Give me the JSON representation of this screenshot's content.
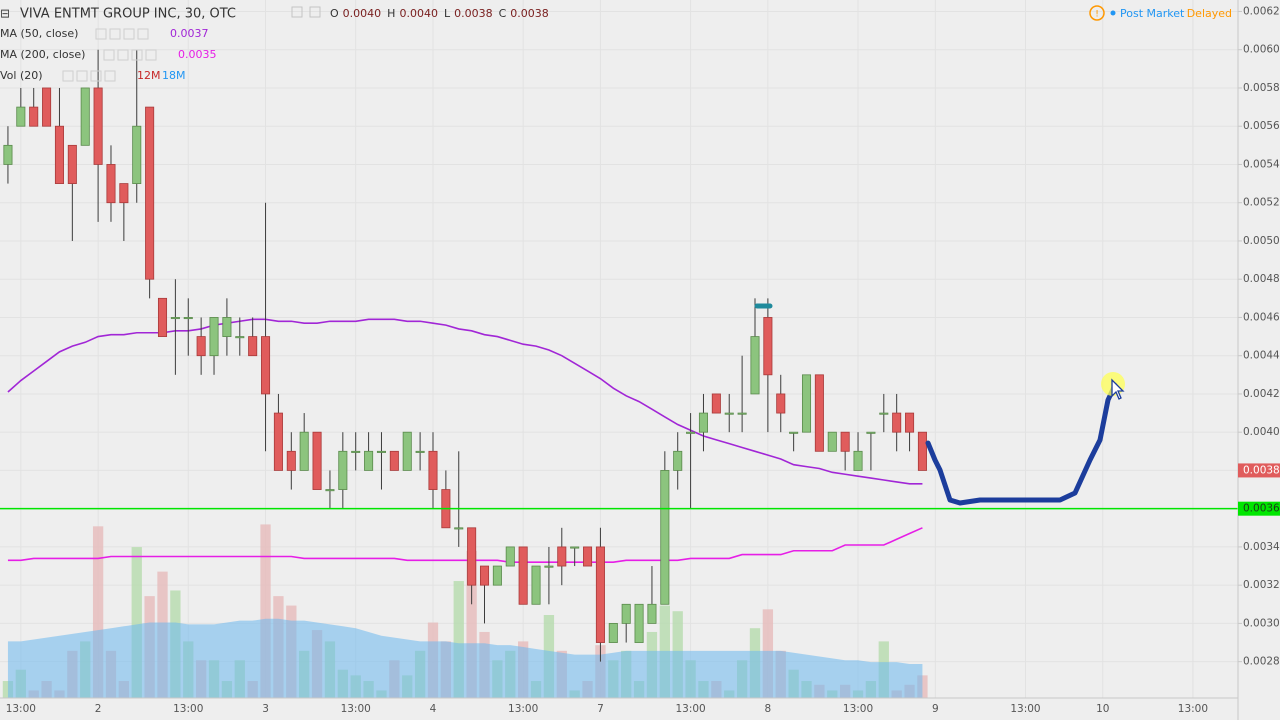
{
  "chart_data": {
    "type": "candlestick",
    "title": "VIVA ENTMT GROUP INC, 30, OTC",
    "ohlc_header": [
      {
        "name": "O",
        "value": "0.0040"
      },
      {
        "name": "H",
        "value": "0.0040"
      },
      {
        "name": "L",
        "value": "0.0038"
      },
      {
        "name": "C",
        "value": "0.0038"
      }
    ],
    "status": {
      "session": "Post Market",
      "feed": "Delayed"
    },
    "categories": [
      null,
      "13:00",
      null,
      null,
      null,
      null,
      null,
      "2",
      null,
      null,
      null,
      null,
      null,
      null,
      "13:00",
      null,
      null,
      null,
      null,
      null,
      "3",
      null,
      null,
      null,
      null,
      null,
      null,
      "13:00",
      null,
      null,
      null,
      null,
      null,
      "4",
      null,
      null,
      null,
      null,
      null,
      null,
      "13:00",
      null,
      null,
      null,
      null,
      null,
      "7",
      null,
      null,
      null,
      null,
      null,
      null,
      "13:00",
      null,
      null,
      null,
      null,
      null,
      "8",
      null,
      null,
      null,
      null,
      null,
      null,
      "13:00",
      null,
      null,
      null,
      null,
      null,
      "9",
      null,
      null,
      null,
      null,
      null,
      null,
      "13:00",
      null,
      null,
      null,
      null,
      null,
      "10",
      null,
      null,
      null,
      null,
      null,
      null,
      "13:00",
      null,
      null,
      null
    ],
    "open": [
      0.0054,
      0.0056,
      0.0057,
      0.0058,
      0.0056,
      0.0055,
      0.0055,
      0.0058,
      0.0054,
      0.0053,
      0.0053,
      0.0057,
      0.0047,
      0.0046,
      0.0046,
      0.0045,
      0.0044,
      0.0045,
      0.0045,
      0.0045,
      0.0045,
      0.0041,
      0.0039,
      0.0038,
      0.004,
      0.0037,
      0.0037,
      0.0039,
      0.0038,
      0.0039,
      0.0039,
      0.0038,
      0.0039,
      0.0039,
      0.0037,
      0.0035,
      0.0035,
      0.0033,
      0.0032,
      0.0033,
      0.0034,
      0.0031,
      0.0033,
      0.0034,
      0.0034,
      0.0034,
      0.0034,
      0.0029,
      0.003,
      0.0029,
      0.003,
      0.0031,
      0.0038,
      0.004,
      0.004,
      0.0042,
      0.0041,
      0.0041,
      0.0042,
      0.0046,
      0.0042,
      0.004,
      0.004,
      0.0043,
      0.0039,
      0.004,
      0.0038,
      0.004,
      0.0041,
      0.0041,
      0.0041,
      0.004,
      null,
      null,
      null,
      null,
      null,
      null,
      null,
      null,
      null,
      null,
      null,
      null,
      null,
      null,
      null,
      null,
      null,
      null,
      null,
      null,
      null,
      null,
      null,
      null
    ],
    "high": [
      0.0056,
      0.0058,
      0.0058,
      0.0058,
      0.0058,
      0.0055,
      0.0058,
      0.006,
      0.0055,
      0.0053,
      0.006,
      0.0057,
      0.0047,
      0.0048,
      0.0047,
      0.0046,
      0.0046,
      0.0047,
      0.0046,
      0.0046,
      0.0052,
      0.0042,
      0.004,
      0.0041,
      0.004,
      0.0038,
      0.004,
      0.004,
      0.004,
      0.004,
      0.0039,
      0.004,
      0.004,
      0.004,
      0.0038,
      0.0039,
      0.0035,
      0.0033,
      0.0033,
      0.0034,
      0.0034,
      0.0033,
      0.0034,
      0.0035,
      0.0034,
      0.0034,
      0.0035,
      0.003,
      0.0031,
      0.0031,
      0.0033,
      0.0039,
      0.004,
      0.0041,
      0.0042,
      0.0042,
      0.0042,
      0.0044,
      0.0047,
      0.0047,
      0.0043,
      0.004,
      0.0043,
      0.0043,
      0.004,
      0.004,
      0.004,
      0.004,
      0.0042,
      0.0042,
      0.0041,
      0.004,
      null,
      null,
      null,
      null,
      null,
      null,
      null,
      null,
      null,
      null,
      null,
      null,
      null,
      null,
      null,
      null,
      null,
      null,
      null,
      null,
      null,
      null,
      null,
      null
    ],
    "low": [
      0.0053,
      0.0056,
      0.0056,
      0.0056,
      0.0053,
      0.005,
      0.0055,
      0.0051,
      0.0051,
      0.005,
      0.0052,
      0.0047,
      0.0045,
      0.0043,
      0.0044,
      0.0043,
      0.0043,
      0.0044,
      0.0044,
      0.0044,
      0.0039,
      0.0038,
      0.0037,
      0.0038,
      0.0037,
      0.0036,
      0.0036,
      0.0038,
      0.0038,
      0.0037,
      0.0038,
      0.0038,
      0.0038,
      0.0036,
      0.0035,
      0.0034,
      0.0031,
      0.003,
      0.0032,
      0.0033,
      0.0031,
      0.0031,
      0.0031,
      0.0032,
      0.0033,
      0.0033,
      0.0028,
      0.0029,
      0.0029,
      0.0029,
      0.003,
      0.0031,
      0.0037,
      0.0036,
      0.0039,
      0.0041,
      0.004,
      0.004,
      0.0042,
      0.004,
      0.004,
      0.0039,
      0.004,
      0.0039,
      0.0039,
      0.0038,
      0.0038,
      0.0038,
      0.004,
      0.0039,
      0.0039,
      0.0038,
      null,
      null,
      null,
      null,
      null,
      null,
      null,
      null,
      null,
      null,
      null,
      null,
      null,
      null,
      null,
      null,
      null,
      null,
      null,
      null,
      null,
      null,
      null,
      null
    ],
    "close": [
      0.0055,
      0.0057,
      0.0056,
      0.0056,
      0.0053,
      0.0053,
      0.0058,
      0.0054,
      0.0052,
      0.0052,
      0.0056,
      0.0048,
      0.0045,
      0.0046,
      0.0046,
      0.0044,
      0.0046,
      0.0046,
      0.0045,
      0.0044,
      0.0042,
      0.0038,
      0.0038,
      0.004,
      0.0037,
      0.0037,
      0.0039,
      0.0039,
      0.0039,
      0.0039,
      0.0038,
      0.004,
      0.0039,
      0.0037,
      0.0035,
      0.0035,
      0.0032,
      0.0032,
      0.0033,
      0.0034,
      0.0031,
      0.0033,
      0.0033,
      0.0033,
      0.0034,
      0.0033,
      0.0029,
      0.003,
      0.0031,
      0.0031,
      0.0031,
      0.0038,
      0.0039,
      0.004,
      0.0041,
      0.0041,
      0.0041,
      0.0041,
      0.0045,
      0.0043,
      0.0041,
      0.004,
      0.0043,
      0.0039,
      0.004,
      0.0039,
      0.0039,
      0.004,
      0.0041,
      0.004,
      0.004,
      0.0038,
      null,
      null,
      null,
      null,
      null,
      null,
      null,
      null,
      null,
      null,
      null,
      null,
      null,
      null,
      null,
      null,
      null,
      null,
      null,
      null,
      null,
      null,
      null,
      null
    ],
    "up_color": "#8cc47e",
    "down_color": "#e05c5c",
    "wick_color": "#3c3c3c",
    "indicators": [
      {
        "name": "MA (50, close)",
        "label": "0.0037",
        "color": "#a126d6",
        "values": [
          0.00421,
          0.00427,
          0.00432,
          0.00437,
          0.00442,
          0.00445,
          0.00447,
          0.0045,
          0.00451,
          0.00451,
          0.00452,
          0.00452,
          0.00452,
          0.00453,
          0.00453,
          0.00454,
          0.00456,
          0.00457,
          0.00458,
          0.00459,
          0.00459,
          0.00458,
          0.00458,
          0.00457,
          0.00457,
          0.00458,
          0.00458,
          0.00458,
          0.00459,
          0.00459,
          0.00459,
          0.00458,
          0.00458,
          0.00457,
          0.00456,
          0.00454,
          0.00453,
          0.00451,
          0.0045,
          0.00448,
          0.00446,
          0.00445,
          0.00443,
          0.0044,
          0.00436,
          0.00432,
          0.00428,
          0.00423,
          0.00419,
          0.00416,
          0.00412,
          0.00408,
          0.00404,
          0.00401,
          0.00398,
          0.00396,
          0.00394,
          0.00392,
          0.0039,
          0.00388,
          0.00386,
          0.00383,
          0.00382,
          0.00381,
          0.00379,
          0.00378,
          0.00377,
          0.00376,
          0.00375,
          0.00374,
          0.00373,
          0.00373,
          null,
          null,
          null,
          null,
          null,
          null,
          null,
          null,
          null,
          null,
          null,
          null,
          null,
          null,
          null,
          null,
          null,
          null,
          null,
          null,
          null,
          null,
          null,
          null
        ]
      },
      {
        "name": "MA (200, close)",
        "label": "0.0035",
        "color": "#e61ee6",
        "values": [
          0.00333,
          0.00333,
          0.00334,
          0.00334,
          0.00334,
          0.00334,
          0.00334,
          0.00334,
          0.00335,
          0.00335,
          0.00335,
          0.00335,
          0.00335,
          0.00335,
          0.00335,
          0.00335,
          0.00335,
          0.00335,
          0.00335,
          0.00335,
          0.00335,
          0.00335,
          0.00335,
          0.00334,
          0.00334,
          0.00334,
          0.00334,
          0.00334,
          0.00334,
          0.00334,
          0.00334,
          0.00333,
          0.00333,
          0.00333,
          0.00333,
          0.00333,
          0.00333,
          0.00333,
          0.00333,
          0.00332,
          0.00332,
          0.00332,
          0.00332,
          0.00332,
          0.00332,
          0.00332,
          0.00332,
          0.00332,
          0.00333,
          0.00333,
          0.00333,
          0.00333,
          0.00333,
          0.00334,
          0.00334,
          0.00334,
          0.00334,
          0.00336,
          0.00336,
          0.00336,
          0.00336,
          0.00338,
          0.00338,
          0.00338,
          0.00338,
          0.00341,
          0.00341,
          0.00341,
          0.00341,
          0.00344,
          0.00347,
          0.0035,
          null,
          null,
          null,
          null,
          null,
          null,
          null,
          null,
          null,
          null,
          null,
          null,
          null,
          null,
          null,
          null,
          null,
          null,
          null,
          null,
          null,
          null,
          null,
          null
        ]
      }
    ],
    "volume": {
      "name": "Vol (20)",
      "value_label": "12M",
      "ma_label": "18M",
      "ylim": [
        0,
        370
      ],
      "up_color": "#b9dcb0",
      "down_color": "#e6bdbd",
      "ma_color": "#6cb8ef",
      "value_label_color": "#c62828",
      "ma_label_color": "#2196f3",
      "values": [
        9,
        15,
        4,
        9,
        4,
        25,
        30,
        91,
        25,
        9,
        80,
        54,
        67,
        57,
        30,
        20,
        20,
        9,
        20,
        9,
        92,
        54,
        49,
        25,
        36,
        30,
        15,
        12,
        9,
        4,
        20,
        12,
        25,
        40,
        30,
        62,
        78,
        35,
        20,
        25,
        30,
        9,
        44,
        25,
        4,
        9,
        28,
        20,
        25,
        9,
        35,
        49,
        46,
        20,
        9,
        9,
        4,
        20,
        37,
        47,
        25,
        15,
        9,
        7,
        4,
        7,
        4,
        9,
        30,
        4,
        7,
        12,
        null,
        null,
        null,
        null,
        null,
        null,
        null,
        null,
        null,
        null,
        null,
        null,
        null,
        null,
        null,
        null,
        null,
        null,
        null,
        null,
        null,
        null,
        null,
        null
      ],
      "ma_values": [
        30,
        30,
        31,
        32,
        33,
        34,
        35,
        36,
        37,
        38,
        39,
        40,
        40,
        40,
        39,
        39,
        39,
        40,
        41,
        41,
        42,
        42,
        41,
        41,
        40,
        39,
        38,
        37,
        35,
        33,
        32,
        31,
        30,
        30,
        30,
        29,
        29,
        29,
        28,
        28,
        27,
        26,
        25,
        24,
        23,
        23,
        23,
        24,
        25,
        25,
        25,
        25,
        25,
        25,
        25,
        25,
        25,
        25,
        25,
        25,
        25,
        24,
        23,
        22,
        21,
        20,
        20,
        19,
        19,
        19,
        18,
        18,
        null,
        null,
        null,
        null,
        null,
        null,
        null,
        null,
        null,
        null,
        null,
        null,
        null,
        null,
        null,
        null,
        null,
        null,
        null,
        null,
        null,
        null,
        null,
        null
      ]
    },
    "ylim": [
      0.00261,
      0.00626
    ],
    "yticks": [
      0.0028,
      {
        "value": 0.003,
        "label": "0.0030"
      },
      0.0032,
      0.0034,
      0.0036,
      0.0038,
      {
        "value": 0.004,
        "label": "0.0040"
      },
      0.0042,
      0.0044,
      0.0046,
      0.0048,
      {
        "value": 0.005,
        "label": "0.0050"
      },
      0.0052,
      0.0054,
      0.0056,
      0.0058,
      {
        "value": 0.006,
        "label": "0.0060"
      },
      0.0062
    ],
    "grid": true,
    "hline": {
      "value": 0.0036,
      "label": "0.0036",
      "color": "#00e600"
    },
    "last_price": {
      "value": 0.0038,
      "label": "0.0038",
      "color": "#e05c5c"
    }
  }
}
